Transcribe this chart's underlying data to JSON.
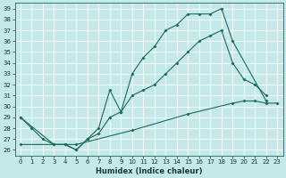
{
  "title": "",
  "xlabel": "Humidex (Indice chaleur)",
  "bg_color": "#c5e8e8",
  "line_color": "#1a6b5a",
  "grid_color": "#ffffff",
  "xlim": [
    -0.5,
    23.5
  ],
  "ylim": [
    25.5,
    39.5
  ],
  "yticks": [
    26,
    27,
    28,
    29,
    30,
    31,
    32,
    33,
    34,
    35,
    36,
    37,
    38,
    39
  ],
  "xticks": [
    0,
    1,
    2,
    3,
    4,
    5,
    6,
    7,
    8,
    9,
    10,
    11,
    12,
    13,
    14,
    15,
    16,
    17,
    18,
    19,
    20,
    21,
    22,
    23
  ],
  "line1_x": [
    0,
    1,
    2,
    3,
    4,
    5,
    6,
    7,
    8,
    9,
    10,
    11,
    12,
    13,
    14,
    15,
    16,
    17,
    18,
    19,
    22
  ],
  "line1_y": [
    29,
    28,
    27,
    26.5,
    26.5,
    26,
    27,
    28,
    31.5,
    29.5,
    33,
    34.5,
    35.5,
    37,
    37.5,
    38.5,
    38.5,
    38.5,
    39,
    36,
    30.5
  ],
  "line2_x": [
    0,
    3,
    4,
    5,
    6,
    7,
    8,
    9,
    10,
    11,
    12,
    13,
    14,
    15,
    16,
    17,
    18,
    19,
    20,
    21,
    22
  ],
  "line2_y": [
    29,
    26.5,
    26.5,
    26,
    27,
    27.5,
    29,
    29.5,
    31,
    31.5,
    32,
    33,
    34,
    35,
    36,
    36.5,
    37,
    34,
    32.5,
    32,
    31
  ],
  "line3_x": [
    0,
    5,
    10,
    15,
    19,
    20,
    21,
    22,
    23
  ],
  "line3_y": [
    26.5,
    26.5,
    27.8,
    29.3,
    30.3,
    30.5,
    30.5,
    30.3,
    30.3
  ]
}
